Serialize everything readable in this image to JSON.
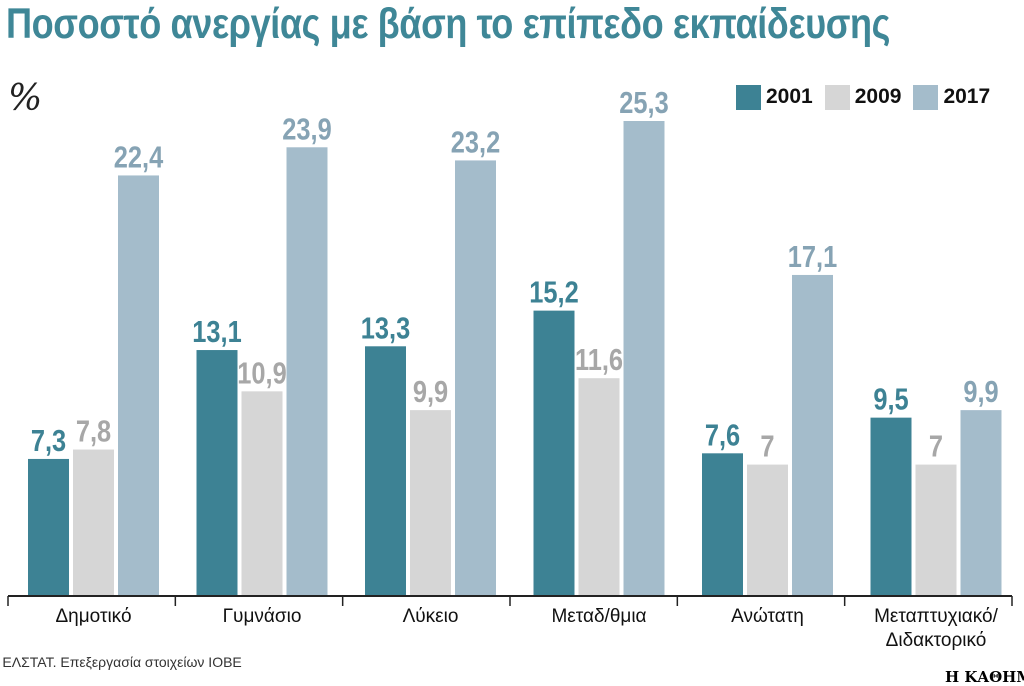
{
  "header": {
    "title": "Ποσοστό ανεργίας με βάση το επίπεδο εκπαίδευσης",
    "unit": "%"
  },
  "legend": [
    {
      "label": "2001",
      "color": "#3d8294"
    },
    {
      "label": "2009",
      "color": "#d6d6d6"
    },
    {
      "label": "2017",
      "color": "#a4bccb"
    }
  ],
  "footer": {
    "source": "Σ: ΕΛΣΤΑΤ. Επεξεργασία στοιχείων ΙΟΒΕ",
    "brand": "Η ΚΑΘΗΜΕ"
  },
  "chart_data": {
    "type": "bar",
    "title": "Ποσοστό ανεργίας με βάση το επίπεδο εκπαίδευσης",
    "ylabel": "%",
    "ylim": [
      0,
      28
    ],
    "grid": false,
    "legend_position": "top-right",
    "categories": [
      [
        "Δημοτικό"
      ],
      [
        "Γυμνάσιο"
      ],
      [
        "Λύκειο"
      ],
      [
        "Μεταδ/θμια"
      ],
      [
        "Ανώτατη"
      ],
      [
        "Μεταπτυχιακό/",
        "Διδακτορικό"
      ]
    ],
    "series": [
      {
        "name": "2001",
        "color": "#3d8294",
        "label_color": "#3d8294",
        "values": [
          7.3,
          13.1,
          13.3,
          15.2,
          7.6,
          9.5
        ],
        "labels": [
          "7,3",
          "13,1",
          "13,3",
          "15,2",
          "7,6",
          "9,5"
        ]
      },
      {
        "name": "2009",
        "color": "#d6d6d6",
        "label_color": "#a7a7a7",
        "values": [
          7.8,
          10.9,
          9.9,
          11.6,
          7,
          7
        ],
        "labels": [
          "7,8",
          "10,9",
          "9,9",
          "11,6",
          "7",
          "7"
        ]
      },
      {
        "name": "2017",
        "color": "#a4bccb",
        "label_color": "#86a3b4",
        "values": [
          22.4,
          23.9,
          23.2,
          25.3,
          17.1,
          9.9
        ],
        "labels": [
          "22,4",
          "23,9",
          "23,2",
          "25,3",
          "17,1",
          "9,9"
        ]
      }
    ]
  }
}
